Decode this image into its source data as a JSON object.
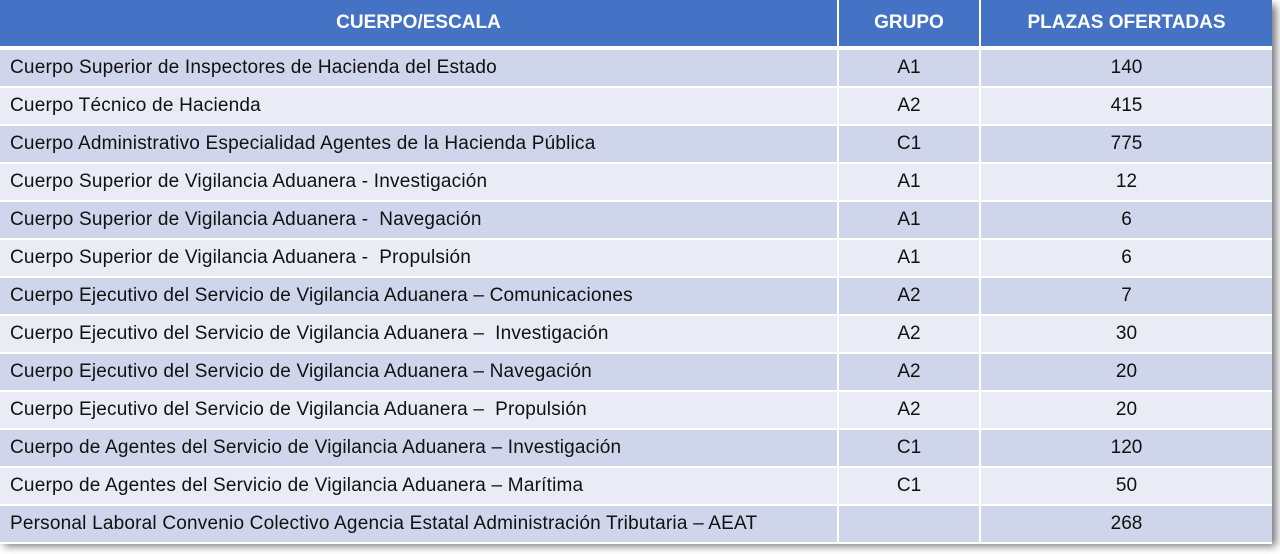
{
  "colors": {
    "header": "#4472C4",
    "row_odd": "#CFD5EA",
    "row_even": "#E9EBF5"
  },
  "table": {
    "headers": [
      "CUERPO/ESCALA",
      "GRUPO",
      "PLAZAS OFERTADAS"
    ],
    "rows": [
      [
        "Cuerpo Superior de Inspectores de Hacienda del Estado",
        "A1",
        "140"
      ],
      [
        "Cuerpo Técnico de Hacienda",
        "A2",
        "415"
      ],
      [
        "Cuerpo Administrativo Especialidad Agentes de la Hacienda Pública",
        "C1",
        "775"
      ],
      [
        "Cuerpo Superior de Vigilancia Aduanera - Investigación",
        "A1",
        "12"
      ],
      [
        "Cuerpo Superior de Vigilancia Aduanera -  Navegación",
        "A1",
        "6"
      ],
      [
        "Cuerpo Superior de Vigilancia Aduanera -  Propulsión",
        "A1",
        "6"
      ],
      [
        "Cuerpo Ejecutivo del Servicio de Vigilancia Aduanera – Comunicaciones",
        "A2",
        "7"
      ],
      [
        "Cuerpo Ejecutivo del Servicio de Vigilancia Aduanera –  Investigación",
        "A2",
        "30"
      ],
      [
        "Cuerpo Ejecutivo del Servicio de Vigilancia Aduanera – Navegación",
        "A2",
        "20"
      ],
      [
        "Cuerpo Ejecutivo del Servicio de Vigilancia Aduanera –  Propulsión",
        "A2",
        "20"
      ],
      [
        "Cuerpo de Agentes del Servicio de Vigilancia Aduanera – Investigación",
        "C1",
        "120"
      ],
      [
        "Cuerpo de Agentes del Servicio de Vigilancia Aduanera – Marítima",
        "C1",
        "50"
      ],
      [
        "Personal Laboral Convenio Colectivo Agencia Estatal Administración Tributaria – AEAT",
        "",
        "268"
      ]
    ]
  }
}
